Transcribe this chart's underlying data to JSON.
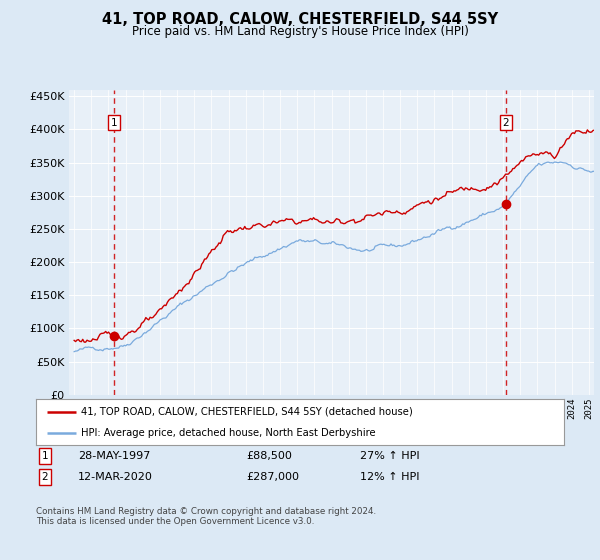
{
  "title": "41, TOP ROAD, CALOW, CHESTERFIELD, S44 5SY",
  "subtitle": "Price paid vs. HM Land Registry's House Price Index (HPI)",
  "legend_line1": "41, TOP ROAD, CALOW, CHESTERFIELD, S44 5SY (detached house)",
  "legend_line2": "HPI: Average price, detached house, North East Derbyshire",
  "footnote": "Contains HM Land Registry data © Crown copyright and database right 2024.\nThis data is licensed under the Open Government Licence v3.0.",
  "marker1_date": "28-MAY-1997",
  "marker1_price": 88500,
  "marker1_hpi": "27% ↑ HPI",
  "marker2_date": "12-MAR-2020",
  "marker2_price": 287000,
  "marker2_hpi": "12% ↑ HPI",
  "red_color": "#cc0000",
  "blue_color": "#7aaadd",
  "background_color": "#dce9f5",
  "plot_bg": "#e8f0f8",
  "grid_color": "#ffffff",
  "ylim": [
    0,
    460000
  ],
  "yticks": [
    0,
    50000,
    100000,
    150000,
    200000,
    250000,
    300000,
    350000,
    400000,
    450000
  ],
  "xlim_start": 1994.7,
  "xlim_end": 2025.3
}
